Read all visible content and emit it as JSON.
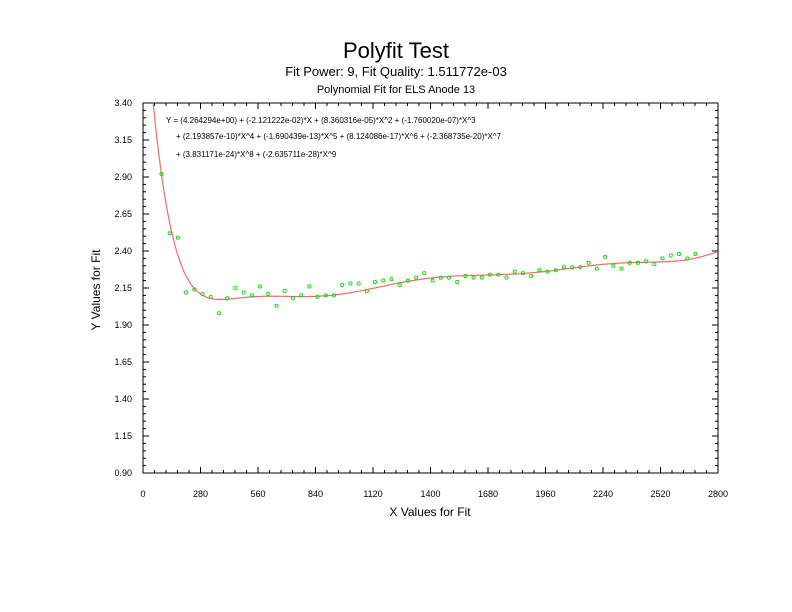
{
  "chart_data": {
    "type": "scatter",
    "title": "Polyfit Test",
    "subtitle": "Fit Power: 9, Fit Quality: 1.511772e-03",
    "subtitle2": "Polynomial Fit for ELS Anode 13",
    "xlabel": "X Values for Fit",
    "ylabel": "Y Values for Fit",
    "xlim": [
      0,
      2800
    ],
    "ylim": [
      0.9,
      3.4
    ],
    "xticks": [
      "0",
      "280",
      "560",
      "840",
      "1120",
      "1400",
      "1680",
      "1960",
      "2240",
      "2520",
      "2800"
    ],
    "yticks": [
      "0.90",
      "1.15",
      "1.40",
      "1.65",
      "1.90",
      "2.15",
      "2.40",
      "2.65",
      "2.90",
      "3.15",
      "3.40"
    ],
    "equation": [
      "Y = (4.264294e+00) + (-2.121222e-02)*X + (8.360316e-05)*X^2 + (-1.760020e-07)*X^3",
      "+ (2.193857e-10)*X^4 + (-1.690439e-13)*X^5 + (8.124086e-17)*X^6 + (-2.368735e-20)*X^7",
      "+ (3.831171e-24)*X^8 + (-2.635711e-28)*X^9"
    ],
    "coefficients": [
      4.264294,
      -0.02121222,
      8.360316e-05,
      -1.76002e-07,
      2.193857e-10,
      -1.690439e-13,
      8.124086e-17,
      -2.368735e-20,
      3.831171e-24,
      -2.635711e-28
    ],
    "series": [
      {
        "type": "scatter",
        "color": "#00dd00",
        "points": [
          [
            90,
            2.92
          ],
          [
            130,
            2.52
          ],
          [
            170,
            2.49
          ],
          [
            210,
            2.12
          ],
          [
            250,
            2.14
          ],
          [
            290,
            2.11
          ],
          [
            330,
            2.09
          ],
          [
            370,
            1.98
          ],
          [
            410,
            2.08
          ],
          [
            450,
            2.15
          ],
          [
            490,
            2.12
          ],
          [
            530,
            2.1
          ],
          [
            570,
            2.16
          ],
          [
            610,
            2.11
          ],
          [
            650,
            2.03
          ],
          [
            690,
            2.13
          ],
          [
            730,
            2.08
          ],
          [
            770,
            2.1
          ],
          [
            810,
            2.16
          ],
          [
            850,
            2.09
          ],
          [
            890,
            2.1
          ],
          [
            930,
            2.1
          ],
          [
            970,
            2.17
          ],
          [
            1010,
            2.18
          ],
          [
            1050,
            2.18
          ],
          [
            1090,
            2.13
          ],
          [
            1130,
            2.19
          ],
          [
            1170,
            2.2
          ],
          [
            1210,
            2.21
          ],
          [
            1250,
            2.17
          ],
          [
            1290,
            2.2
          ],
          [
            1330,
            2.22
          ],
          [
            1370,
            2.25
          ],
          [
            1410,
            2.2
          ],
          [
            1450,
            2.22
          ],
          [
            1490,
            2.22
          ],
          [
            1530,
            2.19
          ],
          [
            1570,
            2.23
          ],
          [
            1610,
            2.22
          ],
          [
            1650,
            2.22
          ],
          [
            1690,
            2.24
          ],
          [
            1730,
            2.24
          ],
          [
            1770,
            2.22
          ],
          [
            1810,
            2.26
          ],
          [
            1850,
            2.25
          ],
          [
            1890,
            2.23
          ],
          [
            1930,
            2.27
          ],
          [
            1970,
            2.26
          ],
          [
            2010,
            2.27
          ],
          [
            2050,
            2.29
          ],
          [
            2090,
            2.29
          ],
          [
            2130,
            2.29
          ],
          [
            2170,
            2.32
          ],
          [
            2210,
            2.28
          ],
          [
            2250,
            2.36
          ],
          [
            2290,
            2.3
          ],
          [
            2330,
            2.28
          ],
          [
            2370,
            2.32
          ],
          [
            2410,
            2.32
          ],
          [
            2450,
            2.33
          ],
          [
            2490,
            2.31
          ],
          [
            2530,
            2.35
          ],
          [
            2570,
            2.37
          ],
          [
            2610,
            2.38
          ],
          [
            2650,
            2.35
          ],
          [
            2690,
            2.38
          ]
        ]
      },
      {
        "type": "line",
        "color": "#ff6666"
      }
    ]
  }
}
